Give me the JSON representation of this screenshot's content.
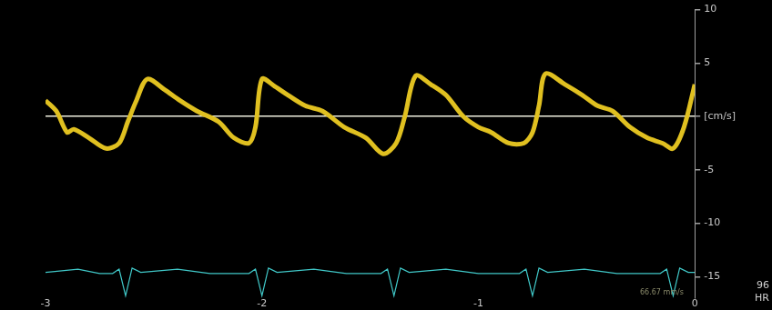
{
  "chart_data": {
    "type": "line",
    "xlim": [
      -3,
      0
    ],
    "xticks": [
      -3,
      -2,
      -1,
      0
    ],
    "ylim": [
      -17,
      10
    ],
    "yticks": [
      -15,
      -10,
      -5,
      {
        "value": 0,
        "label": "[cm/s]"
      },
      5,
      10
    ],
    "series": [
      {
        "color": "#e0c020",
        "x": [
          -3,
          -2.95,
          -2.9,
          -2.87,
          -2.8,
          -2.72,
          -2.66,
          -2.62,
          -2.58,
          -2.53,
          -2.45,
          -2.38,
          -2.3,
          -2.2,
          -2.13,
          -2.06,
          -2.03,
          -2.0,
          -1.94,
          -1.88,
          -1.8,
          -1.72,
          -1.62,
          -1.52,
          -1.44,
          -1.38,
          -1.34,
          -1.29,
          -1.22,
          -1.15,
          -1.07,
          -1.0,
          -0.94,
          -0.86,
          -0.79,
          -0.75,
          -0.72,
          -0.69,
          -0.6,
          -0.52,
          -0.45,
          -0.38,
          -0.3,
          -0.22,
          -0.15,
          -0.1,
          -0.05,
          0
        ],
        "values": [
          1.5,
          0.5,
          -1.5,
          -1.2,
          -2,
          -3,
          -2.5,
          -0.5,
          1.5,
          3.5,
          2.5,
          1.5,
          0.5,
          -0.5,
          -2,
          -2.5,
          -1,
          3.5,
          2.8,
          2,
          1,
          0.5,
          -1,
          -2,
          -3.5,
          -2.5,
          0,
          3.8,
          3,
          2,
          0,
          -1,
          -1.5,
          -2.5,
          -2.5,
          -1.5,
          1,
          4,
          3,
          2,
          1,
          0.5,
          -1,
          -2,
          -2.5,
          -3,
          -1,
          3
        ]
      },
      {
        "color": "#40c8c8",
        "x": [
          -3,
          -2.85,
          -2.75,
          -2.69,
          -2.66,
          -2.63,
          -2.6,
          -2.56,
          -2.39,
          -2.24,
          -2.06,
          -2.03,
          -2.0,
          -1.97,
          -1.93,
          -1.76,
          -1.61,
          -1.45,
          -1.42,
          -1.39,
          -1.36,
          -1.32,
          -1.15,
          -1.0,
          -0.81,
          -0.78,
          -0.75,
          -0.72,
          -0.68,
          -0.51,
          -0.36,
          -0.16,
          -0.13,
          -0.1,
          -0.07,
          -0.03,
          0
        ],
        "values": [
          -14.6,
          -14.3,
          -14.7,
          -14.7,
          -14.3,
          -16.8,
          -14.2,
          -14.6,
          -14.3,
          -14.7,
          -14.7,
          -14.3,
          -16.8,
          -14.2,
          -14.6,
          -14.3,
          -14.7,
          -14.7,
          -14.3,
          -16.8,
          -14.2,
          -14.6,
          -14.3,
          -14.7,
          -14.7,
          -14.3,
          -16.8,
          -14.2,
          -14.6,
          -14.3,
          -14.7,
          -14.7,
          -14.3,
          -16.8,
          -14.2,
          -14.6,
          -14.6
        ]
      }
    ],
    "annotations": [
      "66.67 mm/s",
      "96",
      "HR"
    ]
  }
}
